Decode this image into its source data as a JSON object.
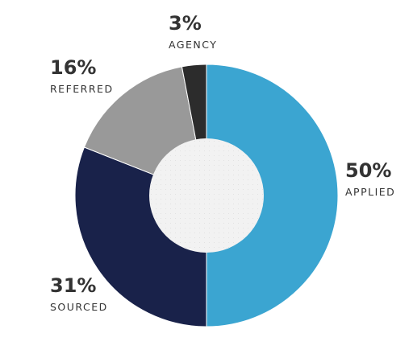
{
  "chart_data": {
    "type": "pie",
    "subtype": "donut",
    "title": "",
    "legend": "none",
    "direction": "clockwise-from-top",
    "slices": [
      {
        "label": "APPLIED",
        "value": 50,
        "value_label": "50%",
        "color": "#3ba5d1"
      },
      {
        "label": "SOURCED",
        "value": 31,
        "value_label": "31%",
        "color": "#19224a"
      },
      {
        "label": "REFERRED",
        "value": 16,
        "value_label": "16%",
        "color": "#999999"
      },
      {
        "label": "AGENCY",
        "value": 3,
        "value_label": "3%",
        "color": "#2c2c2c"
      }
    ],
    "hole_color": "#f2f2f2"
  }
}
